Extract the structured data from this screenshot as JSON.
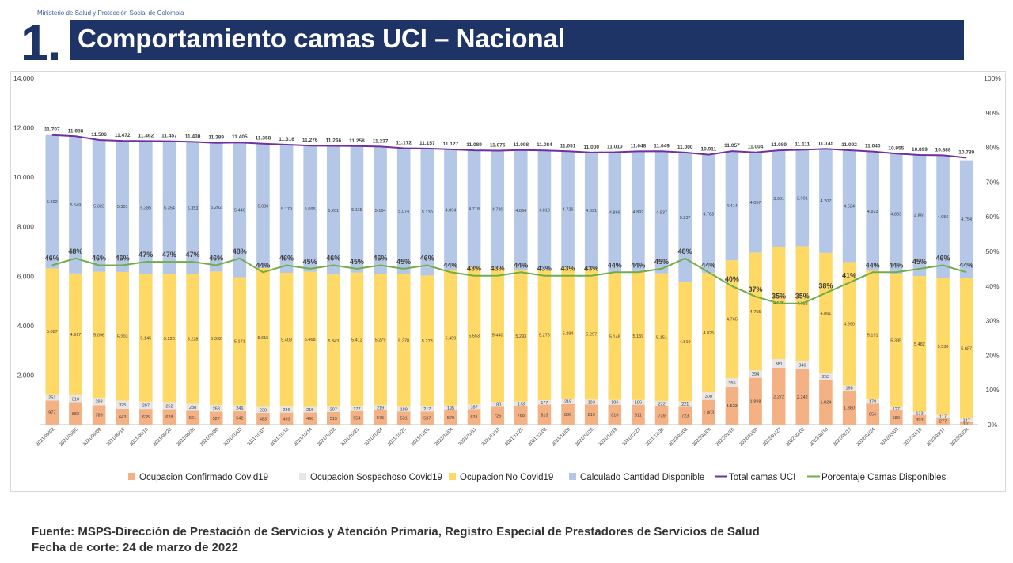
{
  "header": {
    "ministry": "Ministerio de Salud y Protección Social de Colombia",
    "number": "1.",
    "title": "Comportamiento camas UCI – Nacional"
  },
  "footer": {
    "source": "Fuente: MSPS-Dirección de Prestación de Servicios y Atención Primaria, Registro Especial de Prestadores de Servicios de Salud",
    "cutoff": "Fecha de corte: 24 de marzo de 2022"
  },
  "colors": {
    "confirmado": "#f4b183",
    "sospechoso": "#e7e6e6",
    "nocovid": "#ffd966",
    "disponible": "#b4c7e7",
    "total": "#7030a0",
    "porcentaje": "#70ad47"
  },
  "chart_data": {
    "type": "bar",
    "stacked": true,
    "categories": [
      "2021/09/02",
      "2021/09/05",
      "2021/09/09",
      "2021/09/16",
      "2021/09/19",
      "2021/09/23",
      "2021/09/26",
      "2021/09/30",
      "2021/10/03",
      "2021/10/07",
      "2021/10/10",
      "2021/10/14",
      "2021/10/18",
      "2021/10/21",
      "2021/10/24",
      "2021/10/28",
      "2021/11/01",
      "2021/11/04",
      "2021/11/11",
      "2021/11/18",
      "2021/11/25",
      "2021/12/02",
      "2021/12/09",
      "2021/12/16",
      "2021/12/19",
      "2021/12/23",
      "2021/12/30",
      "2022/01/02",
      "2022/01/09",
      "2022/01/16",
      "2022/01/20",
      "2022/01/27",
      "2022/02/03",
      "2022/02/10",
      "2022/02/17",
      "2022/02/24",
      "2022/03/03",
      "2022/03/10",
      "2022/03/17",
      "2022/03/24"
    ],
    "series": [
      {
        "name": "Ocupacion Confirmado Covid19",
        "key": "confirmado",
        "values": [
          977,
          882,
          789,
          643,
          635,
          628,
          561,
          527,
          542,
          483,
          493,
          498,
          515,
          554,
          575,
          531,
          537,
          579,
          631,
          725,
          768,
          813,
          836,
          819,
          810,
          811,
          739,
          723,
          1003,
          1523,
          1898,
          2272,
          2242,
          1824,
          1380,
          856,
          580,
          393,
          277,
          101
        ]
      },
      {
        "name": "Ocupacion Sospechoso Covid19",
        "key": "sospechoso",
        "values": [
          251,
          310,
          298,
          325,
          297,
          252,
          288,
          268,
          246,
          230,
          236,
          215,
          207,
          177,
          219,
          189,
          217,
          195,
          187,
          180,
          173,
          177,
          215,
          193,
          186,
          186,
          222,
          221,
          300,
          355,
          294,
          381,
          346,
          253,
          198,
          170,
          127,
          133,
          117,
          147
        ]
      },
      {
        "name": "Ocupacion No Covid19",
        "key": "nocovid",
        "values": [
          5087,
          4917,
          5096,
          5203,
          5145,
          5223,
          5228,
          5392,
          5171,
          5615,
          5408,
          5468,
          5343,
          5412,
          5279,
          5378,
          5273,
          5459,
          5553,
          5440,
          5293,
          5276,
          5294,
          5297,
          5148,
          5159,
          5151,
          4819,
          4825,
          4765,
          4755,
          4535,
          4622,
          4861,
          4990,
          5191,
          5385,
          5482,
          5538,
          5687
        ]
      },
      {
        "name": "Calculado Cantidad Disponible",
        "key": "disponible",
        "values": [
          5392,
          5549,
          5323,
          5301,
          5385,
          5354,
          5353,
          5202,
          5446,
          5030,
          5179,
          5095,
          5201,
          5115,
          5164,
          5074,
          5130,
          4894,
          4718,
          4730,
          4864,
          4818,
          4726,
          4691,
          4866,
          4892,
          4937,
          5237,
          4783,
          4414,
          4057,
          3901,
          3901,
          4207,
          4524,
          4823,
          4863,
          4891,
          4956,
          4754
        ]
      }
    ],
    "lines": [
      {
        "name": "Total camas UCI",
        "key": "total",
        "axis": "left",
        "values": [
          11707,
          11658,
          11506,
          11472,
          11462,
          11457,
          11430,
          11389,
          11405,
          11358,
          11316,
          11276,
          11266,
          11258,
          11237,
          11172,
          11157,
          11127,
          11089,
          11075,
          11098,
          11084,
          11051,
          11000,
          11010,
          11048,
          11049,
          11000,
          10911,
          11057,
          11004,
          11089,
          11111,
          11145,
          11092,
          11040,
          10955,
          10899,
          10888,
          10789
        ]
      },
      {
        "name": "Porcentaje Camas Disponibles",
        "key": "porcentaje",
        "axis": "right",
        "values": [
          46,
          48,
          46,
          46,
          47,
          47,
          47,
          46,
          48,
          44,
          46,
          45,
          46,
          45,
          46,
          45,
          46,
          44,
          43,
          43,
          44,
          43,
          43,
          43,
          44,
          44,
          45,
          48,
          44,
          40,
          37,
          35,
          35,
          38,
          41,
          44,
          44,
          45,
          46,
          44
        ]
      }
    ],
    "yAxisLeft": {
      "min": 0,
      "max": 14000,
      "ticks": [
        0,
        2000,
        4000,
        6000,
        8000,
        10000,
        12000,
        14000
      ],
      "tickLabels": [
        "",
        "2.000",
        "4.000",
        "6.000",
        "8.000",
        "10.000",
        "12.000",
        "14.000"
      ]
    },
    "yAxisRight": {
      "min": 0,
      "max": 100,
      "ticks": [
        0,
        10,
        20,
        30,
        40,
        50,
        60,
        70,
        80,
        90,
        100
      ],
      "tickLabels": [
        "0%",
        "10%",
        "20%",
        "30%",
        "40%",
        "50%",
        "60%",
        "70%",
        "80%",
        "90%",
        "100%"
      ]
    },
    "legend": [
      "Ocupacion Confirmado Covid19",
      "Ocupacion Sospechoso Covid19",
      "Ocupacion No Covid19",
      "Calculado Cantidad Disponible",
      "Total camas UCI",
      "Porcentaje Camas Disponibles"
    ],
    "legendPosition": "bottom",
    "grid": false
  }
}
